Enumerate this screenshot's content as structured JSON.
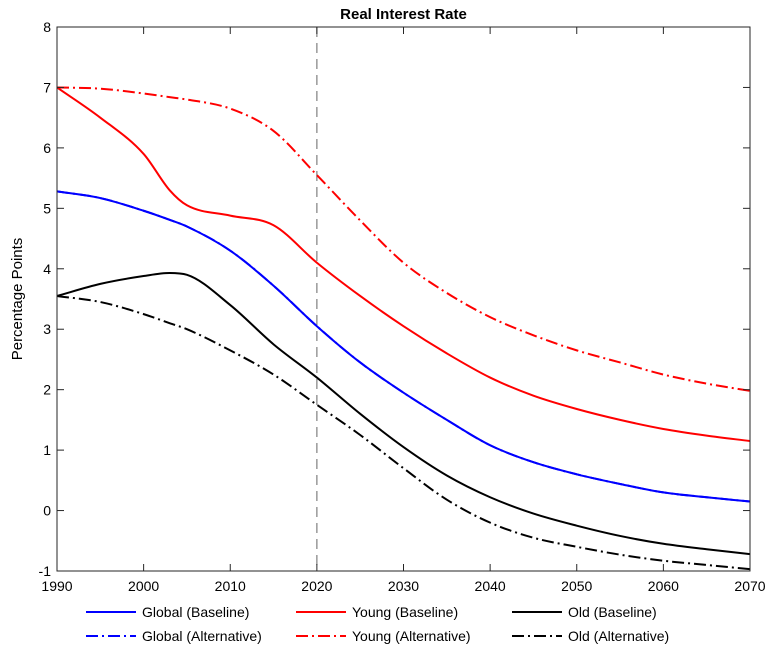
{
  "chart_data": {
    "type": "line",
    "title": "Real Interest Rate",
    "xlabel": "",
    "ylabel": "Percentage Points",
    "xlim": [
      1990,
      2070
    ],
    "ylim": [
      -1,
      8
    ],
    "xticks": [
      1990,
      2000,
      2010,
      2020,
      2030,
      2040,
      2050,
      2060,
      2070
    ],
    "yticks": [
      -1,
      0,
      1,
      2,
      3,
      4,
      5,
      6,
      7,
      8
    ],
    "grid": false,
    "legend_position": "bottom",
    "vertical_reference_line": {
      "x": 2020,
      "style": "dashed",
      "color": "#7f7f7f"
    },
    "x": [
      1990,
      1995,
      2000,
      2003,
      2005,
      2010,
      2015,
      2020,
      2025,
      2030,
      2035,
      2040,
      2045,
      2050,
      2055,
      2060,
      2065,
      2070
    ],
    "series": [
      {
        "name": "Global (Baseline)",
        "color": "#0000ff",
        "line_style": "solid",
        "values": [
          5.28,
          5.17,
          4.96,
          4.81,
          4.7,
          4.3,
          3.72,
          3.05,
          2.45,
          1.95,
          1.5,
          1.08,
          0.8,
          0.6,
          0.44,
          0.3,
          0.22,
          0.15
        ]
      },
      {
        "name": "Young (Baseline)",
        "color": "#ff0000",
        "line_style": "solid",
        "values": [
          7.0,
          6.5,
          5.9,
          5.3,
          5.05,
          4.88,
          4.72,
          4.1,
          3.55,
          3.05,
          2.6,
          2.2,
          1.9,
          1.68,
          1.5,
          1.35,
          1.24,
          1.15
        ]
      },
      {
        "name": "Old (Baseline)",
        "color": "#000000",
        "line_style": "solid",
        "values": [
          3.55,
          3.75,
          3.88,
          3.93,
          3.9,
          3.4,
          2.75,
          2.2,
          1.6,
          1.05,
          0.58,
          0.22,
          -0.05,
          -0.25,
          -0.42,
          -0.55,
          -0.64,
          -0.72
        ]
      },
      {
        "name": "Global (Alternative)",
        "color": "#0000ff",
        "line_style": "dashdot",
        "values": [
          5.28,
          5.17,
          4.96,
          4.81,
          4.7,
          4.3,
          3.72,
          3.05,
          2.45,
          1.95,
          1.5,
          1.08,
          0.8,
          0.6,
          0.44,
          0.3,
          0.22,
          0.15
        ]
      },
      {
        "name": "Young (Alternative)",
        "color": "#ff0000",
        "line_style": "dashdot",
        "values": [
          7.0,
          6.98,
          6.9,
          6.84,
          6.8,
          6.65,
          6.28,
          5.55,
          4.8,
          4.1,
          3.6,
          3.2,
          2.9,
          2.65,
          2.45,
          2.25,
          2.1,
          1.98
        ]
      },
      {
        "name": "Old (Alternative)",
        "color": "#000000",
        "line_style": "dashdot",
        "values": [
          3.55,
          3.45,
          3.25,
          3.1,
          3.0,
          2.65,
          2.25,
          1.75,
          1.25,
          0.7,
          0.18,
          -0.2,
          -0.45,
          -0.6,
          -0.73,
          -0.83,
          -0.9,
          -0.97
        ]
      }
    ]
  }
}
